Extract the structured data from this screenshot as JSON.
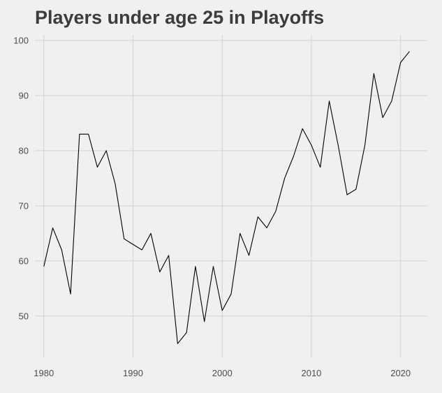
{
  "chart_data": {
    "type": "line",
    "title": "Players under age 25 in Playoffs",
    "xlabel": "",
    "ylabel": "",
    "xlim": [
      1979,
      2023
    ],
    "ylim": [
      42.5,
      101
    ],
    "x_ticks": [
      1980,
      1990,
      2000,
      2010,
      2020
    ],
    "y_ticks": [
      50,
      60,
      70,
      80,
      90,
      100
    ],
    "grid": true,
    "legend": "none",
    "colors": {
      "background": "#f0f0f0",
      "grid": "#d2d2d2",
      "line": "#000000",
      "title": "#3c3c3c",
      "tick_label": "#4d4d4d"
    },
    "series": [
      {
        "x": [
          1980,
          1981,
          1982,
          1983,
          1984,
          1985,
          1986,
          1987,
          1988,
          1989,
          1990,
          1991,
          1992,
          1993,
          1994,
          1995,
          1996,
          1997,
          1998,
          1999,
          2000,
          2001,
          2002,
          2003,
          2004,
          2005,
          2006,
          2007,
          2008,
          2009,
          2010,
          2011,
          2012,
          2013,
          2014,
          2015,
          2016,
          2017,
          2018,
          2019,
          2020,
          2021
        ],
        "values": [
          59,
          66,
          62,
          54,
          83,
          83,
          77,
          80,
          74,
          64,
          63,
          62,
          65,
          58,
          61,
          45,
          47,
          59,
          49,
          59,
          51,
          54,
          65,
          61,
          68,
          66,
          69,
          75,
          79,
          84,
          81,
          77,
          89,
          81,
          72,
          73,
          81,
          94,
          86,
          89,
          96,
          98
        ]
      }
    ]
  }
}
